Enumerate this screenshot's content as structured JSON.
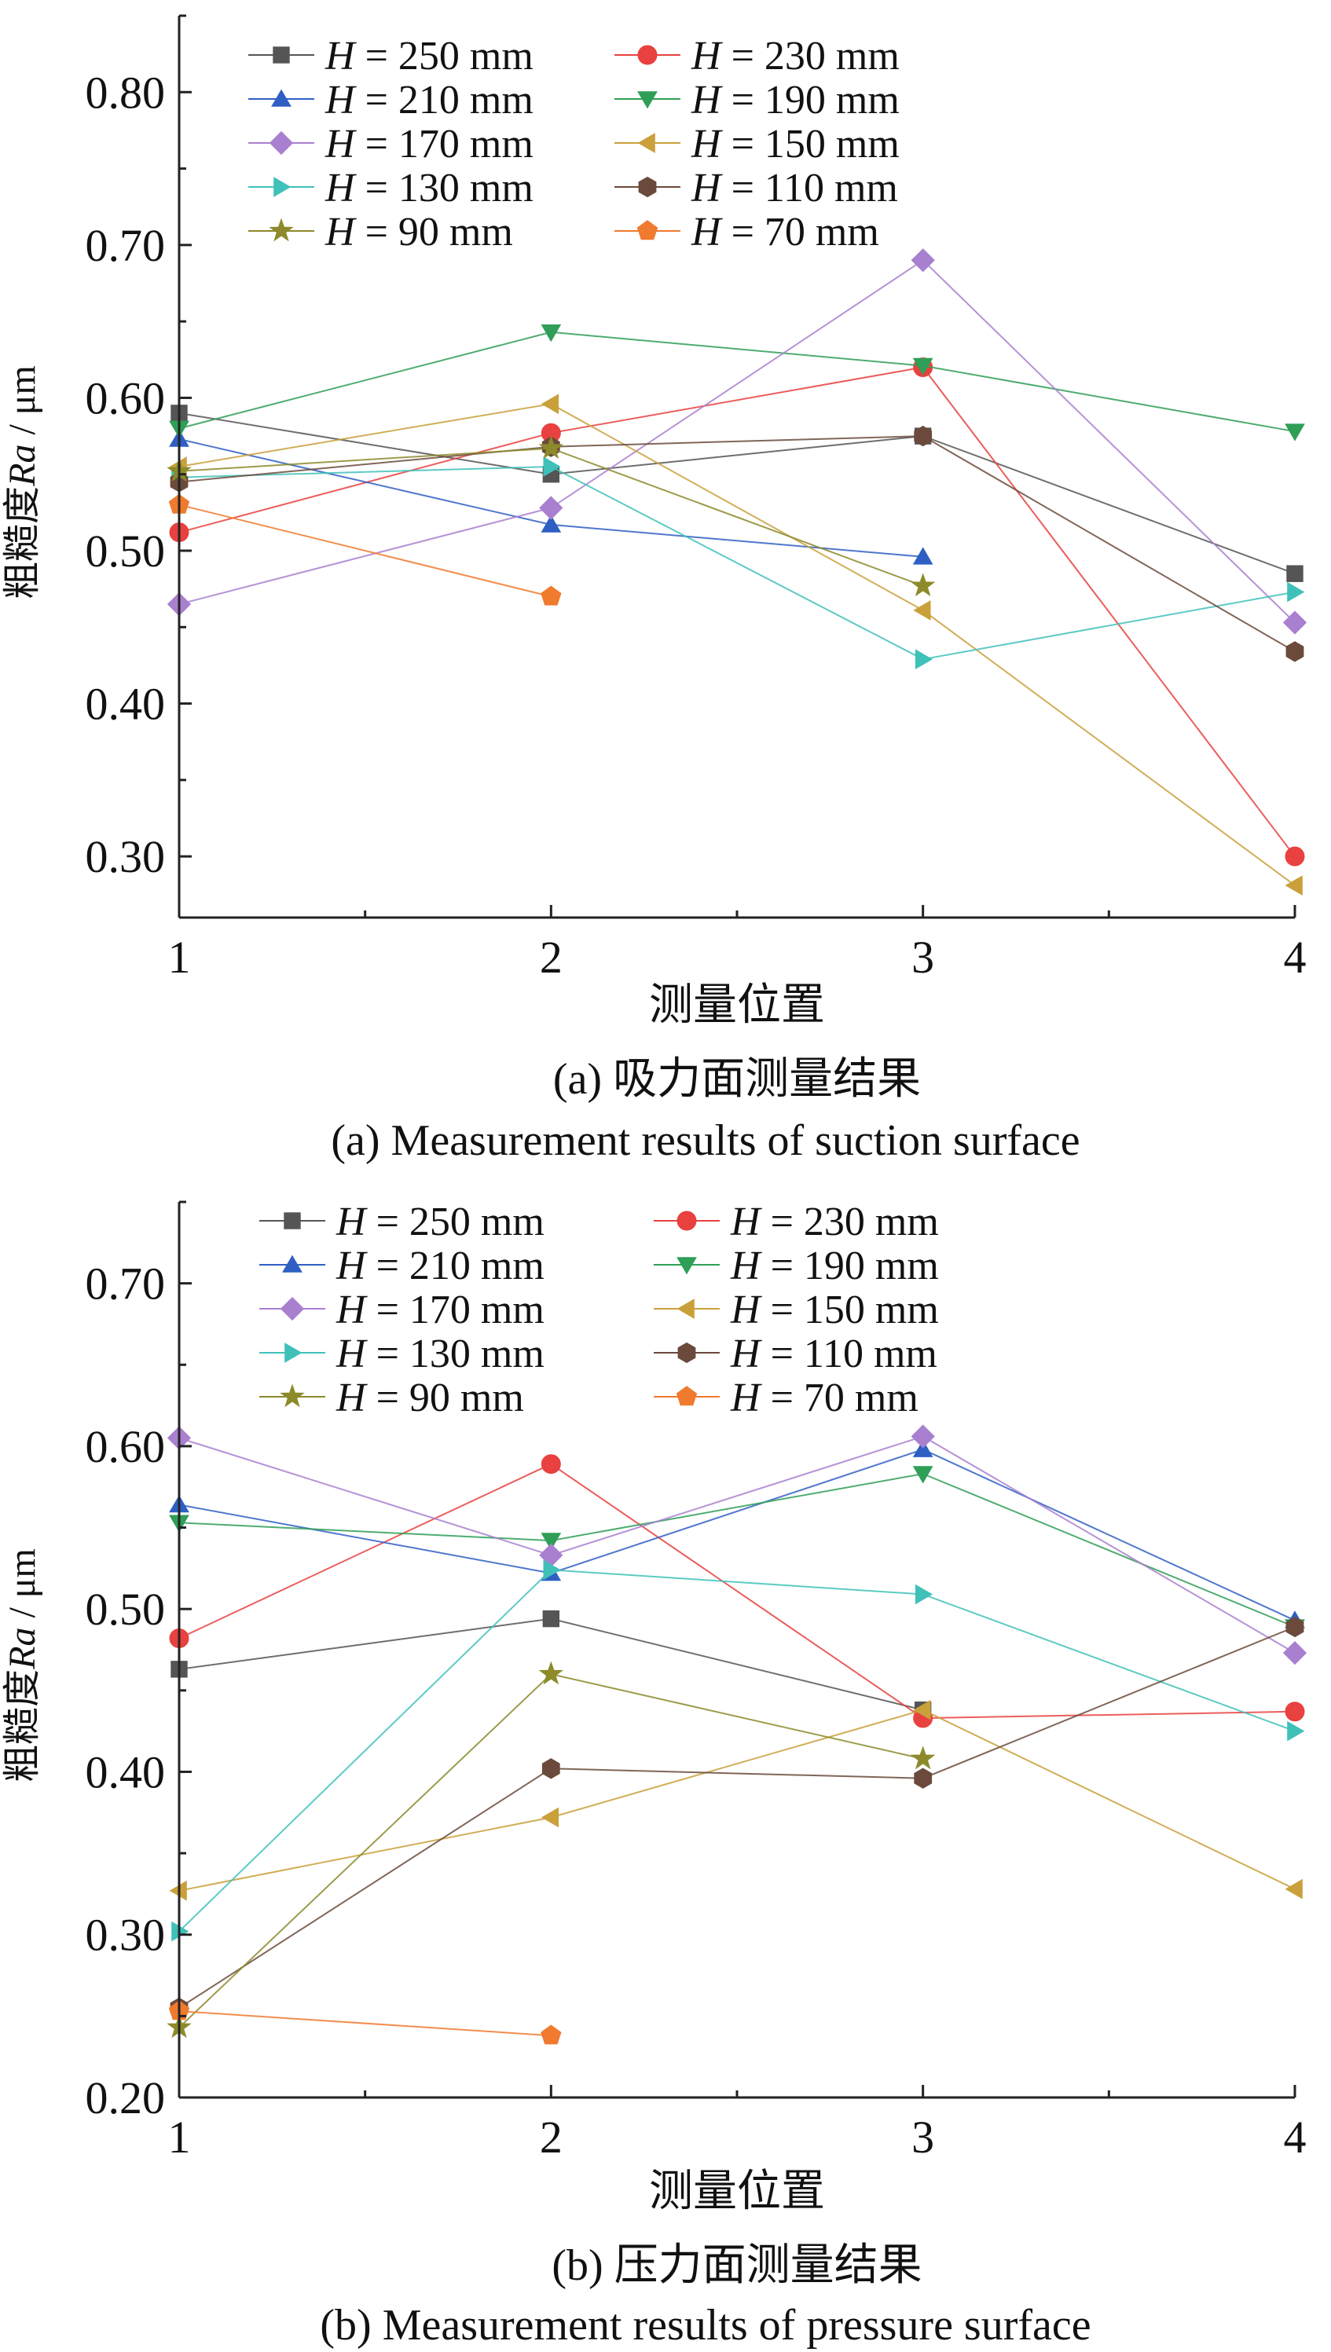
{
  "chart_data": [
    {
      "type": "line",
      "title": "",
      "xlabel": "测量位置",
      "ylabel_cn": "粗糙度",
      "ylabel_sym": "Ra",
      "ylabel_unit": " / μm",
      "caption_cn": "(a) 吸力面测量结果",
      "caption_en": "(a) Measurement results of suction surface",
      "xlim": [
        1,
        4
      ],
      "ylim": [
        0.26,
        0.85
      ],
      "xticks": [
        1,
        2,
        3,
        4
      ],
      "xtick_labels": [
        "1",
        "2",
        "3",
        "4"
      ],
      "yticks": [
        0.3,
        0.4,
        0.5,
        0.6,
        0.7,
        0.8
      ],
      "ytick_labels": [
        "0.30",
        "0.40",
        "0.50",
        "0.60",
        "0.70",
        "0.80"
      ],
      "legend": "top-left, 2 columns",
      "series": [
        {
          "name": "H = 250 mm",
          "sym": "H",
          "rest": " = 250 mm",
          "marker": "square",
          "color": "#555555",
          "x": [
            1,
            2,
            3,
            4
          ],
          "y": [
            0.59,
            0.55,
            0.575,
            0.485
          ]
        },
        {
          "name": "H = 230 mm",
          "sym": "H",
          "rest": " = 230 mm",
          "marker": "circle",
          "color": "#e8413f",
          "x": [
            1,
            2,
            3,
            4
          ],
          "y": [
            0.512,
            0.577,
            0.62,
            0.3
          ]
        },
        {
          "name": "H = 210 mm",
          "sym": "H",
          "rest": " = 210 mm",
          "marker": "tri-up",
          "color": "#2f5fc3",
          "x": [
            1,
            2,
            3
          ],
          "y": [
            0.573,
            0.517,
            0.496
          ]
        },
        {
          "name": "H = 190 mm",
          "sym": "H",
          "rest": " = 190 mm",
          "marker": "tri-down",
          "color": "#2f9e57",
          "x": [
            1,
            2,
            3,
            4
          ],
          "y": [
            0.58,
            0.643,
            0.621,
            0.578
          ]
        },
        {
          "name": "H = 170 mm",
          "sym": "H",
          "rest": " = 170 mm",
          "marker": "diamond",
          "color": "#a97fcf",
          "x": [
            1,
            2,
            3,
            4
          ],
          "y": [
            0.465,
            0.528,
            0.69,
            0.453
          ]
        },
        {
          "name": "H = 150 mm",
          "sym": "H",
          "rest": " = 150 mm",
          "marker": "tri-left",
          "color": "#c9a03a",
          "x": [
            1,
            2,
            3,
            4
          ],
          "y": [
            0.555,
            0.596,
            0.461,
            0.281
          ]
        },
        {
          "name": "H = 130 mm",
          "sym": "H",
          "rest": " = 130 mm",
          "marker": "tri-right",
          "color": "#3fc1ba",
          "x": [
            1,
            2,
            3,
            4
          ],
          "y": [
            0.548,
            0.555,
            0.429,
            0.473
          ]
        },
        {
          "name": "H = 110 mm",
          "sym": "H",
          "rest": " = 110 mm",
          "marker": "hexagon",
          "color": "#6b4a3c",
          "x": [
            1,
            2,
            3,
            4
          ],
          "y": [
            0.545,
            0.568,
            0.575,
            0.434
          ]
        },
        {
          "name": "H = 90 mm",
          "sym": "H",
          "rest": " = 90 mm",
          "marker": "star",
          "color": "#8c8a2a",
          "x": [
            1,
            2,
            3
          ],
          "y": [
            0.552,
            0.567,
            0.477
          ]
        },
        {
          "name": "H = 70 mm",
          "sym": "H",
          "rest": " = 70 mm",
          "marker": "pentagon",
          "color": "#f07a2e",
          "x": [
            1,
            2
          ],
          "y": [
            0.53,
            0.47
          ]
        }
      ]
    },
    {
      "type": "line",
      "title": "",
      "xlabel": "测量位置",
      "ylabel_cn": "粗糙度",
      "ylabel_sym": "Ra",
      "ylabel_unit": " / μm",
      "caption_cn": "(b) 压力面测量结果",
      "caption_en": "(b) Measurement results of pressure surface",
      "xlim": [
        1,
        4
      ],
      "ylim": [
        0.2,
        0.75
      ],
      "xticks": [
        1,
        2,
        3,
        4
      ],
      "xtick_labels": [
        "1",
        "2",
        "3",
        "4"
      ],
      "yticks": [
        0.2,
        0.3,
        0.4,
        0.5,
        0.6,
        0.7
      ],
      "ytick_labels": [
        "0.20",
        "0.30",
        "0.40",
        "0.50",
        "0.60",
        "0.70"
      ],
      "legend": "top-left, 2 columns",
      "series": [
        {
          "name": "H = 250 mm",
          "sym": "H",
          "rest": " = 250 mm",
          "marker": "square",
          "color": "#555555",
          "x": [
            1,
            2,
            3
          ],
          "y": [
            0.463,
            0.494,
            0.438
          ]
        },
        {
          "name": "H = 230 mm",
          "sym": "H",
          "rest": " = 230 mm",
          "marker": "circle",
          "color": "#e8413f",
          "x": [
            1,
            2,
            3,
            4
          ],
          "y": [
            0.482,
            0.589,
            0.433,
            0.437
          ]
        },
        {
          "name": "H = 210 mm",
          "sym": "H",
          "rest": " = 210 mm",
          "marker": "tri-up",
          "color": "#2f5fc3",
          "x": [
            1,
            2,
            3,
            4
          ],
          "y": [
            0.564,
            0.522,
            0.598,
            0.493
          ]
        },
        {
          "name": "H = 190 mm",
          "sym": "H",
          "rest": " = 190 mm",
          "marker": "tri-down",
          "color": "#2f9e57",
          "x": [
            1,
            2,
            3,
            4
          ],
          "y": [
            0.553,
            0.542,
            0.583,
            0.489
          ]
        },
        {
          "name": "H = 170 mm",
          "sym": "H",
          "rest": " = 170 mm",
          "marker": "diamond",
          "color": "#a97fcf",
          "x": [
            1,
            2,
            3,
            4
          ],
          "y": [
            0.605,
            0.533,
            0.606,
            0.473
          ]
        },
        {
          "name": "H = 150 mm",
          "sym": "H",
          "rest": " = 150 mm",
          "marker": "tri-left",
          "color": "#c9a03a",
          "x": [
            1,
            2,
            3,
            4
          ],
          "y": [
            0.327,
            0.372,
            0.438,
            0.328
          ]
        },
        {
          "name": "H = 130 mm",
          "sym": "H",
          "rest": " = 130 mm",
          "marker": "tri-right",
          "color": "#3fc1ba",
          "x": [
            1,
            2,
            3,
            4
          ],
          "y": [
            0.302,
            0.524,
            0.509,
            0.425
          ]
        },
        {
          "name": "H = 110 mm",
          "sym": "H",
          "rest": " = 110 mm",
          "marker": "hexagon",
          "color": "#6b4a3c",
          "x": [
            1,
            2,
            3,
            4
          ],
          "y": [
            0.255,
            0.402,
            0.396,
            0.489
          ]
        },
        {
          "name": "H = 90 mm",
          "sym": "H",
          "rest": " = 90 mm",
          "marker": "star",
          "color": "#8c8a2a",
          "x": [
            1,
            2,
            3
          ],
          "y": [
            0.243,
            0.46,
            0.408
          ]
        },
        {
          "name": "H = 70 mm",
          "sym": "H",
          "rest": " = 70 mm",
          "marker": "pentagon",
          "color": "#f07a2e",
          "x": [
            1,
            2
          ],
          "y": [
            0.253,
            0.238
          ]
        }
      ]
    }
  ]
}
